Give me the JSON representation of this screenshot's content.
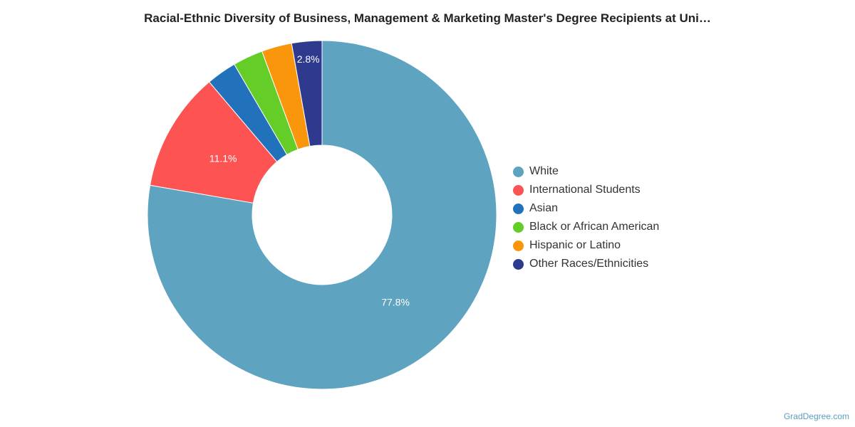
{
  "chart_data": {
    "type": "pie",
    "variant": "donut",
    "title": "Racial-Ethnic Diversity of Business, Management & Marketing Master's Degree Recipients at Uni…",
    "series": [
      {
        "name": "White",
        "value": 77.8,
        "color": "#5ea3bf",
        "label": "77.8%"
      },
      {
        "name": "International Students",
        "value": 11.1,
        "color": "#fe5353",
        "label": "11.1%"
      },
      {
        "name": "Asian",
        "value": 2.8,
        "color": "#2271bb",
        "label": ""
      },
      {
        "name": "Black or African American",
        "value": 2.8,
        "color": "#64cd28",
        "label": ""
      },
      {
        "name": "Hispanic or Latino",
        "value": 2.8,
        "color": "#f9960c",
        "label": ""
      },
      {
        "name": "Other Races/Ethnicities",
        "value": 2.8,
        "color": "#2e3a8e",
        "label": "2.8%"
      }
    ],
    "legend_position": "right"
  },
  "credit": "GradDegree.com"
}
